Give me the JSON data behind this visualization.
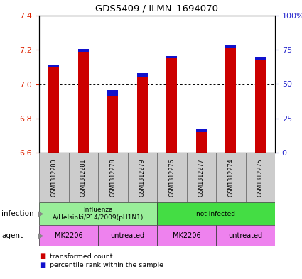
{
  "title": "GDS5409 / ILMN_1694070",
  "samples": [
    "GSM1312280",
    "GSM1312281",
    "GSM1312278",
    "GSM1312279",
    "GSM1312276",
    "GSM1312277",
    "GSM1312274",
    "GSM1312275"
  ],
  "red_values": [
    7.1,
    7.19,
    6.93,
    7.04,
    7.15,
    6.72,
    7.21,
    7.14
  ],
  "blue_values": [
    7.115,
    7.205,
    6.965,
    7.065,
    7.165,
    6.735,
    7.225,
    7.16
  ],
  "ylim_left": [
    6.6,
    7.4
  ],
  "ylim_right": [
    0,
    100
  ],
  "yticks_left": [
    6.6,
    6.8,
    7.0,
    7.2,
    7.4
  ],
  "yticks_right": [
    0,
    25,
    50,
    75,
    100
  ],
  "ytick_labels_right": [
    "0",
    "25",
    "50",
    "75",
    "100%"
  ],
  "infection_groups": [
    {
      "label": "Influenza\nA/Helsinki/P14/2009(pH1N1)",
      "start": 0,
      "end": 4,
      "color": "#99EE99"
    },
    {
      "label": "not infected",
      "start": 4,
      "end": 8,
      "color": "#44DD44"
    }
  ],
  "agent_groups": [
    {
      "label": "MK2206",
      "start": 0,
      "end": 2,
      "color": "#EE82EE"
    },
    {
      "label": "untreated",
      "start": 2,
      "end": 4,
      "color": "#EE82EE"
    },
    {
      "label": "MK2206",
      "start": 4,
      "end": 6,
      "color": "#EE82EE"
    },
    {
      "label": "untreated",
      "start": 6,
      "end": 8,
      "color": "#EE82EE"
    }
  ],
  "red_color": "#CC0000",
  "blue_color": "#1111CC",
  "bar_bottom": 6.6,
  "bar_width": 0.35,
  "background_color": "#FFFFFF",
  "plot_bg_color": "#FFFFFF",
  "left_label_color": "#DD2200",
  "right_label_color": "#2222CC",
  "label_row1": "infection",
  "label_row2": "agent",
  "sample_box_color": "#CCCCCC",
  "dotted_lines": [
    6.8,
    7.0,
    7.2
  ],
  "legend_red": "transformed count",
  "legend_blue": "percentile rank within the sample"
}
